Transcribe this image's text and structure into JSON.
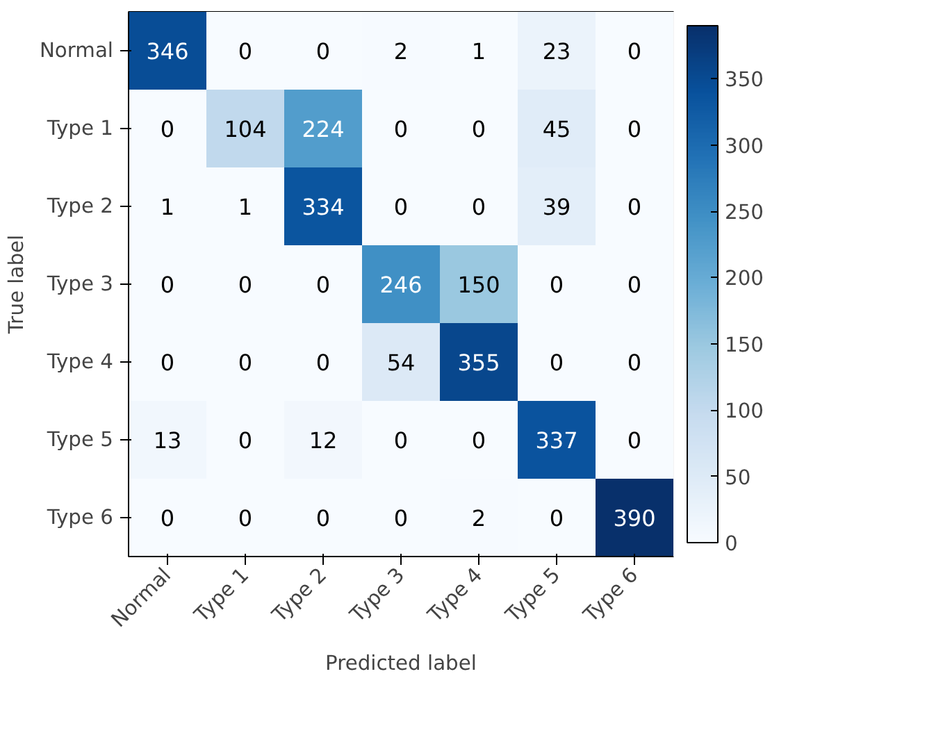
{
  "chart_data": {
    "type": "heatmap",
    "xlabel": "Predicted label",
    "ylabel": "True label",
    "categories": [
      "Normal",
      "Type 1",
      "Type 2",
      "Type 3",
      "Type 4",
      "Type 5",
      "Type 6"
    ],
    "y_categories": [
      "Normal",
      "Type 1",
      "Type 2",
      "Type 3",
      "Type 4",
      "Type 5",
      "Type 6"
    ],
    "cells": [
      [
        346,
        0,
        0,
        2,
        1,
        23,
        0
      ],
      [
        0,
        104,
        224,
        0,
        0,
        45,
        0
      ],
      [
        1,
        1,
        334,
        0,
        0,
        39,
        0
      ],
      [
        0,
        0,
        0,
        246,
        150,
        0,
        0
      ],
      [
        0,
        0,
        0,
        54,
        355,
        0,
        0
      ],
      [
        13,
        0,
        12,
        0,
        0,
        337,
        0
      ],
      [
        0,
        0,
        0,
        0,
        2,
        0,
        390
      ]
    ],
    "clim": [
      0,
      390
    ],
    "cticks": [
      0,
      50,
      100,
      150,
      200,
      250,
      300,
      350
    ],
    "data_labels": true
  }
}
